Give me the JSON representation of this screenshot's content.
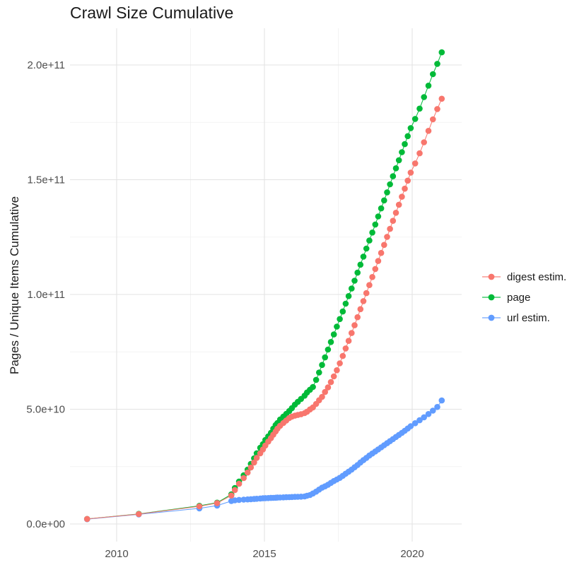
{
  "header": {
    "title": "Crawl Size Cumulative"
  },
  "axes": {
    "y": {
      "label": "Pages / Unique Items Cumulative",
      "tick_labels": [
        "0.0e+00",
        "5.0e+10",
        "1.0e+11",
        "1.5e+11",
        "2.0e+11"
      ]
    },
    "x": {
      "tick_labels": [
        "2010",
        "2015",
        "2020"
      ]
    }
  },
  "legend": {
    "items": [
      {
        "id": "digest-estim",
        "label": "digest estim.",
        "color": "#F8766D"
      },
      {
        "id": "page",
        "label": "page",
        "color": "#00BA38"
      },
      {
        "id": "url-estim",
        "label": "url estim.",
        "color": "#619CFF"
      }
    ]
  },
  "colors": {
    "digest": "#F8766D",
    "page": "#00BA38",
    "url": "#619CFF",
    "grid_major": "#E3E3E3",
    "grid_minor": "#F0F0F0",
    "tick_text": "#4d4d4d",
    "title_text": "#1a1a1a"
  },
  "chart_data": {
    "type": "scatter",
    "title": "Crawl Size Cumulative",
    "xlabel": "",
    "ylabel": "Pages / Unique Items Cumulative",
    "legend_position": "right",
    "grid": true,
    "x_unit": "year (decimal, one point per crawl)",
    "y_unit": "cumulative count; values listed in billions (1e9)",
    "xlim": [
      2008.4,
      2021.7
    ],
    "ylim": [
      0,
      216000000000.0
    ],
    "xticks": [
      2010,
      2015,
      2020
    ],
    "minor_xticks": [
      2012.5,
      2017.5
    ],
    "yticks": [
      {
        "value_billions": 0,
        "label": "0.0e+00"
      },
      {
        "value_billions": 50,
        "label": "5.0e+10"
      },
      {
        "value_billions": 100,
        "label": "1.0e+11"
      },
      {
        "value_billions": 150,
        "label": "1.5e+11"
      },
      {
        "value_billions": 200,
        "label": "2.0e+11"
      }
    ],
    "minor_yticks_billions": [
      25,
      75,
      125,
      175
    ],
    "x": [
      2009.0,
      2010.75,
      2012.8,
      2013.4,
      2013.88,
      2014.0,
      2014.14,
      2014.3,
      2014.43,
      2014.54,
      2014.65,
      2014.74,
      2014.86,
      2014.95,
      2015.03,
      2015.13,
      2015.22,
      2015.3,
      2015.38,
      2015.44,
      2015.53,
      2015.64,
      2015.74,
      2015.84,
      2015.93,
      2016.03,
      2016.13,
      2016.24,
      2016.36,
      2016.44,
      2016.54,
      2016.64,
      2016.75,
      2016.85,
      2016.95,
      2017.05,
      2017.15,
      2017.25,
      2017.35,
      2017.45,
      2017.55,
      2017.65,
      2017.75,
      2017.85,
      2017.95,
      2018.05,
      2018.15,
      2018.25,
      2018.35,
      2018.45,
      2018.55,
      2018.65,
      2018.75,
      2018.85,
      2018.95,
      2019.05,
      2019.15,
      2019.25,
      2019.35,
      2019.45,
      2019.55,
      2019.65,
      2019.75,
      2019.85,
      2019.95,
      2020.1,
      2020.25,
      2020.4,
      2020.55,
      2020.7,
      2020.85,
      2021.0
    ],
    "series": [
      {
        "name": "digest estim.",
        "color": "#F8766D",
        "values_billions": [
          2.2,
          4.3,
          7.7,
          9.1,
          12.4,
          14.8,
          17.5,
          20.0,
          22.4,
          24.6,
          26.8,
          28.8,
          30.8,
          32.5,
          34.2,
          35.9,
          37.4,
          38.9,
          40.3,
          41.5,
          42.8,
          44.0,
          45.1,
          46.2,
          46.8,
          47.2,
          47.5,
          47.8,
          48.3,
          48.9,
          49.9,
          50.8,
          52.3,
          53.9,
          55.4,
          57.5,
          59.5,
          61.8,
          64.3,
          67.0,
          70.0,
          73.2,
          76.5,
          79.8,
          83.2,
          86.6,
          90.1,
          93.6,
          97.1,
          100.6,
          104.1,
          107.6,
          111.1,
          114.6,
          118.1,
          121.6,
          125.1,
          128.6,
          132.1,
          135.6,
          139.1,
          142.6,
          146.1,
          149.6,
          153.1,
          157.1,
          161.5,
          166.3,
          171.3,
          176.3,
          180.8,
          185.3
        ]
      },
      {
        "name": "page",
        "color": "#00BA38",
        "values_billions": [
          2.2,
          4.4,
          7.9,
          9.3,
          12.9,
          15.7,
          18.5,
          21.2,
          23.7,
          26.2,
          28.6,
          30.8,
          33.2,
          34.8,
          36.6,
          38.2,
          39.7,
          41.5,
          43.1,
          44.0,
          45.5,
          46.8,
          48.0,
          49.2,
          50.5,
          52.0,
          53.2,
          54.5,
          55.9,
          57.3,
          58.5,
          59.7,
          62.8,
          66.0,
          69.3,
          72.6,
          76.0,
          79.3,
          82.6,
          86.0,
          89.3,
          92.6,
          96.0,
          99.3,
          102.6,
          106.0,
          109.5,
          113.0,
          116.5,
          120.0,
          123.5,
          127.0,
          130.5,
          134.0,
          137.5,
          141.0,
          144.5,
          148.0,
          151.5,
          155.0,
          158.5,
          162.0,
          165.5,
          169.0,
          172.5,
          176.5,
          181.0,
          186.0,
          191.0,
          196.0,
          200.5,
          205.5
        ]
      },
      {
        "name": "url estim.",
        "color": "#619CFF",
        "values_billions": [
          2.1,
          4.2,
          6.8,
          8.0,
          10.0,
          10.3,
          10.5,
          10.6,
          10.7,
          10.8,
          10.9,
          11.0,
          11.1,
          11.2,
          11.25,
          11.3,
          11.35,
          11.4,
          11.45,
          11.5,
          11.55,
          11.6,
          11.65,
          11.7,
          11.75,
          11.8,
          11.85,
          11.9,
          12.0,
          12.3,
          12.6,
          13.3,
          14.1,
          15.0,
          15.8,
          16.4,
          17.1,
          17.9,
          18.7,
          19.4,
          20.1,
          21.0,
          21.9,
          22.8,
          23.7,
          24.7,
          25.7,
          26.8,
          27.8,
          28.8,
          29.8,
          30.7,
          31.6,
          32.5,
          33.4,
          34.3,
          35.2,
          36.1,
          37.0,
          37.9,
          38.8,
          39.7,
          40.6,
          41.6,
          42.6,
          43.9,
          45.2,
          46.5,
          47.9,
          49.4,
          51.0,
          53.8
        ]
      }
    ]
  }
}
